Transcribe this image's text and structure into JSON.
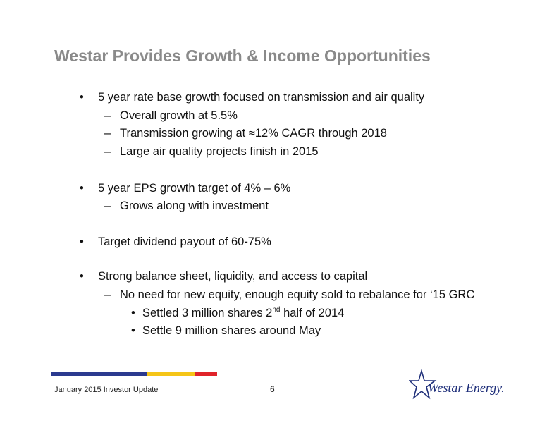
{
  "slide": {
    "title": "Westar Provides Growth & Income Opportunities",
    "bullets": [
      {
        "text": "5 year rate base growth focused on transmission and air quality",
        "subs": [
          "Overall growth at 5.5%",
          "Transmission growing at ≈12% CAGR through 2018",
          "Large air quality projects finish in 2015"
        ]
      },
      {
        "text": "5 year EPS growth target of 4% – 6%",
        "subs": [
          "Grows along with investment"
        ]
      },
      {
        "text": "Target dividend payout of 60-75%",
        "subs": []
      },
      {
        "text": "Strong balance sheet, liquidity, and access to capital",
        "subs": [
          "No need for new equity, enough equity sold to rebalance for ‘15 GRC"
        ],
        "subsubs": [
          {
            "pre": "Settled 3 million shares 2",
            "sup": "nd",
            "post": " half of 2014"
          },
          {
            "pre": "Settle 9 million shares around May",
            "sup": "",
            "post": ""
          }
        ]
      }
    ],
    "markers": {
      "bullet": "•",
      "dash": "–",
      "subbullet": "•"
    }
  },
  "footer": {
    "text": "January 2015 Investor Update",
    "page_number": "6",
    "stripe_colors": [
      "#2b3a8f",
      "#f5c518",
      "#e0242a"
    ],
    "logo_text": "Westar Energy."
  }
}
